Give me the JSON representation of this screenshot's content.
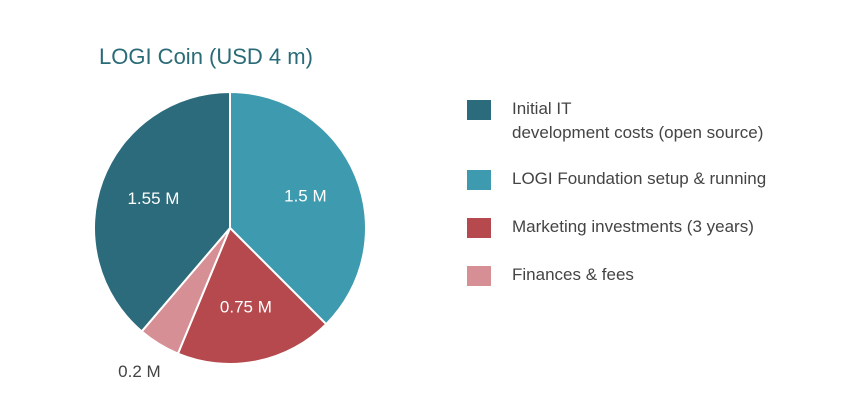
{
  "chart_data": {
    "type": "pie",
    "title": "LOGI Coin (USD 4 m)",
    "slices": [
      {
        "legend": "Initial IT\ndevelopment costs (open source)",
        "value": 1.55,
        "data_label": "1.55 M",
        "color": "#2c6b7b",
        "label_color": "#ffffff"
      },
      {
        "legend": "LOGI Foundation setup & running",
        "value": 1.5,
        "data_label": "1.5 M",
        "color": "#3e9aae",
        "label_color": "#ffffff"
      },
      {
        "legend": "Marketing investments (3 years)",
        "value": 0.75,
        "data_label": "0.75 M",
        "color": "#b5494d",
        "label_color": "#ffffff"
      },
      {
        "legend": "Finances & fees",
        "value": 0.2,
        "data_label": "0.2 M",
        "color": "#d68f95",
        "label_color": "#444444"
      }
    ],
    "legend_position": "right"
  }
}
